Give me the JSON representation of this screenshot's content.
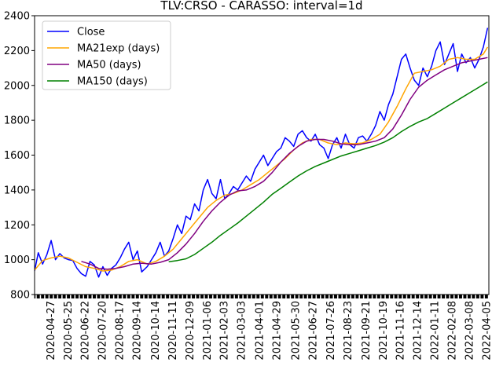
{
  "chart_data": {
    "type": "line",
    "title": "TLV:CRSO - CARASSO: interval=1d",
    "xlabel": "",
    "ylabel": "",
    "ylim": [
      800,
      2400
    ],
    "yticks": [
      800,
      1000,
      1200,
      1400,
      1600,
      1800,
      2000,
      2200,
      2400
    ],
    "x_range": [
      "2020-04-01",
      "2022-04-09"
    ],
    "xticks": [
      "2020-04-27",
      "2020-05-25",
      "2020-06-22",
      "2020-07-20",
      "2020-08-17",
      "2020-09-14",
      "2020-10-14",
      "2020-11-11",
      "2020-12-09",
      "2021-01-06",
      "2021-02-03",
      "2021-03-03",
      "2021-04-01",
      "2021-04-29",
      "2021-05-30",
      "2021-06-27",
      "2021-07-26",
      "2021-08-23",
      "2021-09-21",
      "2021-10-19",
      "2021-11-16",
      "2021-12-14",
      "2022-01-11",
      "2022-02-08",
      "2022-03-08",
      "2022-04-05"
    ],
    "grid": false,
    "legend": "upper left",
    "series": [
      {
        "name": "Close",
        "color": "#0000ff",
        "x": [
          "2020-04-01",
          "2020-04-07",
          "2020-04-14",
          "2020-04-21",
          "2020-04-28",
          "2020-05-05",
          "2020-05-12",
          "2020-05-19",
          "2020-05-26",
          "2020-06-02",
          "2020-06-09",
          "2020-06-16",
          "2020-06-23",
          "2020-06-30",
          "2020-07-07",
          "2020-07-14",
          "2020-07-21",
          "2020-07-28",
          "2020-08-04",
          "2020-08-11",
          "2020-08-18",
          "2020-08-25",
          "2020-09-01",
          "2020-09-08",
          "2020-09-15",
          "2020-09-22",
          "2020-10-01",
          "2020-10-08",
          "2020-10-15",
          "2020-10-22",
          "2020-10-29",
          "2020-11-05",
          "2020-11-12",
          "2020-11-19",
          "2020-11-26",
          "2020-12-03",
          "2020-12-10",
          "2020-12-17",
          "2020-12-24",
          "2020-12-31",
          "2021-01-07",
          "2021-01-14",
          "2021-01-21",
          "2021-01-28",
          "2021-02-04",
          "2021-02-11",
          "2021-02-18",
          "2021-02-25",
          "2021-03-04",
          "2021-03-11",
          "2021-03-18",
          "2021-03-25",
          "2021-04-01",
          "2021-04-08",
          "2021-04-15",
          "2021-04-22",
          "2021-04-29",
          "2021-05-06",
          "2021-05-13",
          "2021-05-20",
          "2021-05-27",
          "2021-06-03",
          "2021-06-10",
          "2021-06-17",
          "2021-06-24",
          "2021-07-01",
          "2021-07-08",
          "2021-07-15",
          "2021-07-22",
          "2021-07-29",
          "2021-08-05",
          "2021-08-12",
          "2021-08-19",
          "2021-08-26",
          "2021-09-02",
          "2021-09-09",
          "2021-09-16",
          "2021-09-23",
          "2021-09-30",
          "2021-10-07",
          "2021-10-14",
          "2021-10-21",
          "2021-10-28",
          "2021-11-04",
          "2021-11-11",
          "2021-11-18",
          "2021-11-25",
          "2021-12-02",
          "2021-12-09",
          "2021-12-16",
          "2021-12-23",
          "2021-12-30",
          "2022-01-06",
          "2022-01-13",
          "2022-01-20",
          "2022-01-27",
          "2022-02-03",
          "2022-02-10",
          "2022-02-17",
          "2022-02-24",
          "2022-03-03",
          "2022-03-10",
          "2022-03-17",
          "2022-03-24",
          "2022-03-31",
          "2022-04-07"
        ],
        "y": [
          935,
          1040,
          975,
          1030,
          1110,
          1000,
          1035,
          1010,
          1000,
          995,
          950,
          920,
          905,
          990,
          970,
          900,
          960,
          910,
          950,
          970,
          1010,
          1060,
          1100,
          1000,
          1050,
          930,
          960,
          1000,
          1040,
          1100,
          1020,
          1050,
          1120,
          1200,
          1150,
          1250,
          1230,
          1320,
          1280,
          1400,
          1460,
          1380,
          1350,
          1460,
          1350,
          1380,
          1420,
          1400,
          1440,
          1480,
          1450,
          1520,
          1560,
          1600,
          1540,
          1580,
          1620,
          1640,
          1700,
          1680,
          1650,
          1720,
          1740,
          1700,
          1680,
          1720,
          1660,
          1640,
          1580,
          1660,
          1700,
          1640,
          1720,
          1660,
          1640,
          1700,
          1710,
          1680,
          1720,
          1770,
          1850,
          1800,
          1890,
          1950,
          2050,
          2150,
          2180,
          2100,
          2030,
          2000,
          2100,
          2050,
          2110,
          2200,
          2250,
          2120,
          2180,
          2240,
          2080,
          2180,
          2130,
          2160,
          2100,
          2150,
          2220,
          2330
        ]
      },
      {
        "name": "MA21exp (days)",
        "color": "#ffa500",
        "x": [
          "2020-04-01",
          "2020-04-14",
          "2020-04-28",
          "2020-05-12",
          "2020-05-26",
          "2020-06-09",
          "2020-06-23",
          "2020-07-07",
          "2020-07-21",
          "2020-08-04",
          "2020-08-18",
          "2020-09-01",
          "2020-09-15",
          "2020-10-01",
          "2020-10-15",
          "2020-10-29",
          "2020-11-12",
          "2020-11-26",
          "2020-12-10",
          "2020-12-24",
          "2021-01-07",
          "2021-01-21",
          "2021-02-04",
          "2021-02-18",
          "2021-03-04",
          "2021-03-18",
          "2021-04-01",
          "2021-04-15",
          "2021-04-29",
          "2021-05-13",
          "2021-05-27",
          "2021-06-10",
          "2021-06-24",
          "2021-07-08",
          "2021-07-22",
          "2021-08-05",
          "2021-08-19",
          "2021-09-02",
          "2021-09-16",
          "2021-09-30",
          "2021-10-14",
          "2021-10-28",
          "2021-11-11",
          "2021-11-25",
          "2021-12-09",
          "2021-12-23",
          "2022-01-06",
          "2022-01-20",
          "2022-02-03",
          "2022-02-17",
          "2022-03-03",
          "2022-03-17",
          "2022-03-31",
          "2022-04-07"
        ],
        "y": [
          940,
          995,
          1010,
          1020,
          1010,
          985,
          960,
          950,
          935,
          940,
          960,
          990,
          1000,
          975,
          990,
          1020,
          1060,
          1120,
          1180,
          1240,
          1300,
          1340,
          1370,
          1380,
          1400,
          1430,
          1460,
          1500,
          1540,
          1580,
          1630,
          1670,
          1690,
          1690,
          1670,
          1660,
          1670,
          1665,
          1670,
          1690,
          1720,
          1790,
          1880,
          1980,
          2070,
          2080,
          2090,
          2110,
          2150,
          2160,
          2150,
          2150,
          2180,
          2220
        ]
      },
      {
        "name": "MA50 (days)",
        "color": "#800080",
        "x": [
          "2020-06-16",
          "2020-06-30",
          "2020-07-14",
          "2020-07-28",
          "2020-08-11",
          "2020-08-25",
          "2020-09-08",
          "2020-09-22",
          "2020-10-08",
          "2020-10-22",
          "2020-11-05",
          "2020-11-19",
          "2020-12-03",
          "2020-12-17",
          "2020-12-31",
          "2021-01-14",
          "2021-01-28",
          "2021-02-11",
          "2021-02-25",
          "2021-03-11",
          "2021-03-25",
          "2021-04-08",
          "2021-04-22",
          "2021-05-06",
          "2021-05-20",
          "2021-06-03",
          "2021-06-17",
          "2021-07-01",
          "2021-07-15",
          "2021-07-29",
          "2021-08-12",
          "2021-08-26",
          "2021-09-09",
          "2021-09-23",
          "2021-10-07",
          "2021-10-21",
          "2021-11-04",
          "2021-11-18",
          "2021-12-02",
          "2021-12-16",
          "2021-12-30",
          "2022-01-13",
          "2022-01-27",
          "2022-02-10",
          "2022-02-24",
          "2022-03-10",
          "2022-03-24",
          "2022-04-07"
        ],
        "y": [
          990,
          975,
          950,
          945,
          950,
          960,
          975,
          980,
          975,
          985,
          1000,
          1040,
          1090,
          1150,
          1220,
          1280,
          1330,
          1370,
          1395,
          1400,
          1420,
          1450,
          1500,
          1560,
          1610,
          1650,
          1680,
          1690,
          1690,
          1680,
          1665,
          1660,
          1660,
          1670,
          1680,
          1700,
          1750,
          1830,
          1920,
          1990,
          2030,
          2060,
          2090,
          2110,
          2130,
          2140,
          2150,
          2160
        ]
      },
      {
        "name": "MA150 (days)",
        "color": "#008000",
        "x": [
          "2020-11-05",
          "2020-11-19",
          "2020-12-03",
          "2020-12-17",
          "2020-12-31",
          "2021-01-14",
          "2021-01-28",
          "2021-02-11",
          "2021-02-25",
          "2021-03-11",
          "2021-03-25",
          "2021-04-08",
          "2021-04-22",
          "2021-05-06",
          "2021-05-20",
          "2021-06-03",
          "2021-06-17",
          "2021-07-01",
          "2021-07-15",
          "2021-07-29",
          "2021-08-12",
          "2021-08-26",
          "2021-09-09",
          "2021-09-23",
          "2021-10-07",
          "2021-10-21",
          "2021-11-04",
          "2021-11-18",
          "2021-12-02",
          "2021-12-16",
          "2021-12-30",
          "2022-01-13",
          "2022-01-27",
          "2022-02-10",
          "2022-02-24",
          "2022-03-10",
          "2022-03-24",
          "2022-04-07"
        ],
        "y": [
          988,
          995,
          1005,
          1030,
          1065,
          1100,
          1140,
          1175,
          1210,
          1250,
          1290,
          1330,
          1375,
          1410,
          1445,
          1480,
          1510,
          1535,
          1555,
          1575,
          1595,
          1610,
          1625,
          1640,
          1655,
          1675,
          1700,
          1735,
          1765,
          1790,
          1810,
          1840,
          1870,
          1900,
          1930,
          1960,
          1990,
          2020
        ]
      }
    ]
  }
}
